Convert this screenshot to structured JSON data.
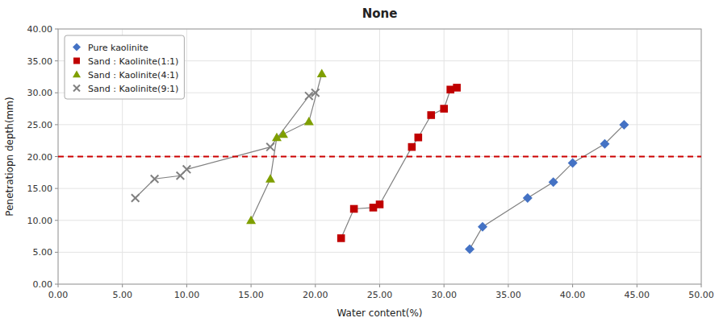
{
  "chart_data": {
    "type": "scatter",
    "title": "None",
    "x_label": "Water content(%)",
    "y_label": "Penetratiopn depth(mm)",
    "xlim": [
      0.0,
      50.0
    ],
    "ylim": [
      0.0,
      40.0
    ],
    "xticks": [
      {
        "value": 0.0,
        "label": "0.00"
      },
      {
        "value": 5.0,
        "label": "5.00"
      },
      {
        "value": 10.0,
        "label": "10.00"
      },
      {
        "value": 15.0,
        "label": "15.00"
      },
      {
        "value": 20.0,
        "label": "20.00"
      },
      {
        "value": 25.0,
        "label": "25.00"
      },
      {
        "value": 30.0,
        "label": "30.00"
      },
      {
        "value": 35.0,
        "label": "35.00"
      },
      {
        "value": 40.0,
        "label": "40.00"
      },
      {
        "value": 45.0,
        "label": "45.00"
      },
      {
        "value": 50.0,
        "label": "50.00"
      }
    ],
    "yticks": [
      {
        "value": 0.0,
        "label": "0.00"
      },
      {
        "value": 5.0,
        "label": "5.00"
      },
      {
        "value": 10.0,
        "label": "10.00"
      },
      {
        "value": 15.0,
        "label": "15.00"
      },
      {
        "value": 20.0,
        "label": "20.00"
      },
      {
        "value": 25.0,
        "label": "25.00"
      },
      {
        "value": 30.0,
        "label": "30.00"
      },
      {
        "value": 35.0,
        "label": "35.00"
      },
      {
        "value": 40.0,
        "label": "40.00"
      }
    ],
    "grid": true,
    "legend": "upper-left",
    "line_color": "#808080",
    "hline": {
      "value": 20.0,
      "color": "#cc0000",
      "line_style": "dashed"
    },
    "series": [
      {
        "name": "Pure kaolinite",
        "color": "#4472C4",
        "marker": "diamond",
        "line_style": "solid",
        "x": [
          32.0,
          33.0,
          36.5,
          38.5,
          40.0,
          42.5,
          44.0
        ],
        "values": [
          5.5,
          9.0,
          13.5,
          16.0,
          19.0,
          22.0,
          25.0
        ]
      },
      {
        "name": "Sand : Kaolinite(1:1)",
        "color": "#C00000",
        "marker": "square",
        "line_style": "solid",
        "x": [
          22.0,
          23.0,
          24.5,
          25.0,
          27.5,
          28.0,
          29.0,
          30.0,
          30.5,
          31.0
        ],
        "values": [
          7.2,
          11.8,
          12.0,
          12.5,
          21.5,
          23.0,
          26.5,
          27.5,
          30.5,
          30.8
        ]
      },
      {
        "name": "Sand : Kaolinite(4:1)",
        "color": "#7F9F00",
        "marker": "triangle",
        "line_style": "solid",
        "x": [
          15.0,
          16.5,
          17.0,
          17.5,
          19.5,
          20.5
        ],
        "values": [
          10.0,
          16.5,
          23.0,
          23.5,
          25.5,
          33.0
        ]
      },
      {
        "name": "Sand : Kaolinite(9:1)",
        "color": "#808080",
        "marker": "x",
        "line_style": "solid",
        "x": [
          6.0,
          7.5,
          9.5,
          10.0,
          16.5,
          19.5,
          20.0
        ],
        "values": [
          13.5,
          16.5,
          17.0,
          18.0,
          21.5,
          29.5,
          30.0
        ]
      }
    ]
  }
}
